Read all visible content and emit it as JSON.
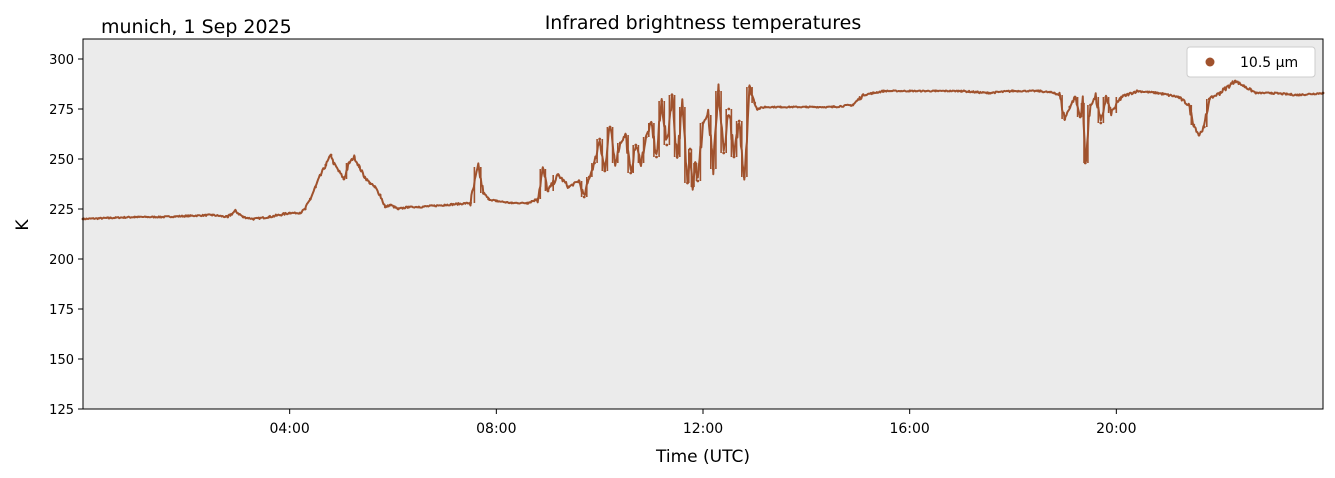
{
  "chart_data": {
    "type": "scatter",
    "title": "Infrared brightness temperatures",
    "subtitle": "munich, 1 Sep 2025",
    "xlabel": "Time (UTC)",
    "ylabel": "K",
    "xlim": [
      0,
      24
    ],
    "ylim": [
      125,
      310
    ],
    "x_ticks": [
      4,
      8,
      12,
      16,
      20
    ],
    "x_tick_labels": [
      "04:00",
      "08:00",
      "12:00",
      "16:00",
      "20:00"
    ],
    "y_ticks": [
      125,
      150,
      175,
      200,
      225,
      250,
      275,
      300
    ],
    "y_tick_labels": [
      "125",
      "150",
      "175",
      "200",
      "225",
      "250",
      "275",
      "300"
    ],
    "legend": {
      "position": "top-right",
      "entries": [
        "10.5 µm"
      ]
    },
    "colors": {
      "series": "#a0522d",
      "plot_bg": "#ebebeb"
    },
    "series": [
      {
        "name": "10.5 µm",
        "x": [
          0.0,
          0.5,
          1.0,
          1.5,
          2.0,
          2.5,
          2.8,
          2.95,
          3.1,
          3.3,
          3.6,
          4.0,
          4.2,
          4.3,
          4.4,
          4.5,
          4.6,
          4.7,
          4.8,
          4.85,
          4.95,
          5.05,
          5.15,
          5.25,
          5.35,
          5.45,
          5.55,
          5.65,
          5.75,
          5.85,
          5.95,
          6.1,
          6.3,
          6.5,
          7.0,
          7.5,
          7.65,
          7.75,
          7.85,
          8.0,
          8.3,
          8.6,
          8.8,
          8.9,
          9.0,
          9.2,
          9.4,
          9.6,
          9.7,
          9.8,
          9.9,
          10.0,
          10.1,
          10.2,
          10.3,
          10.4,
          10.5,
          10.6,
          10.7,
          10.8,
          10.9,
          11.0,
          11.1,
          11.2,
          11.3,
          11.4,
          11.5,
          11.6,
          11.7,
          11.75,
          11.8,
          11.85,
          11.9,
          12.0,
          12.1,
          12.2,
          12.3,
          12.4,
          12.5,
          12.6,
          12.7,
          12.8,
          12.9,
          13.0,
          13.05,
          13.2,
          13.5,
          14.0,
          14.5,
          14.9,
          15.1,
          15.3,
          15.5,
          16.0,
          16.5,
          17.0,
          17.5,
          18.0,
          18.5,
          18.8,
          18.9,
          19.0,
          19.1,
          19.2,
          19.3,
          19.35,
          19.4,
          19.5,
          19.6,
          19.7,
          19.8,
          19.9,
          20.1,
          20.4,
          20.8,
          21.2,
          21.4,
          21.5,
          21.6,
          21.7,
          21.8,
          22.0,
          22.3,
          22.5,
          22.7,
          23.0,
          23.5,
          24.0
        ],
        "y": [
          220,
          220.5,
          221,
          221,
          221.5,
          222,
          221,
          224,
          221,
          220,
          221,
          223,
          223,
          225,
          230,
          236,
          242,
          247,
          252,
          248,
          244,
          240,
          248,
          251,
          246,
          241,
          238,
          236,
          232,
          226,
          227,
          225,
          226,
          226,
          227,
          228,
          246,
          233,
          230,
          229,
          228,
          228,
          230,
          245,
          234,
          242,
          236,
          239,
          231,
          241,
          248,
          260,
          244,
          266,
          248,
          258,
          262,
          243,
          257,
          248,
          261,
          268,
          251,
          279,
          257,
          282,
          251,
          276,
          238,
          255,
          236,
          248,
          239,
          268,
          272,
          245,
          284,
          253,
          275,
          251,
          269,
          241,
          286,
          278,
          275,
          276,
          276,
          276,
          276,
          277,
          282,
          283,
          284,
          284,
          284,
          284,
          283,
          284,
          284,
          283,
          282,
          270,
          276,
          281,
          271,
          278,
          248,
          277,
          281,
          268,
          281,
          273,
          281,
          284,
          283,
          281,
          277,
          267,
          262,
          266,
          280,
          283,
          289,
          286,
          283,
          283,
          282,
          283
        ]
      }
    ]
  }
}
